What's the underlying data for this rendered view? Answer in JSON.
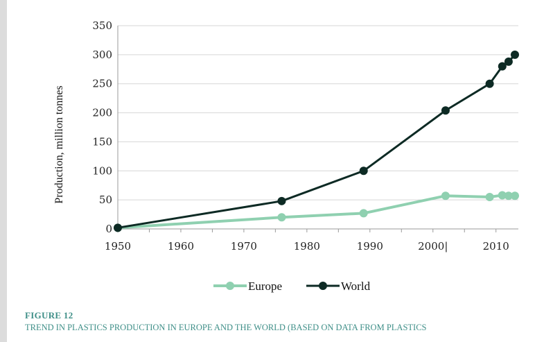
{
  "chart_data": {
    "type": "line",
    "ylabel": "Production, million tonnes",
    "xlabel": "",
    "xlim": [
      1950,
      2013
    ],
    "ylim": [
      0,
      350
    ],
    "x_ticks": [
      "1950",
      "1960",
      "1970",
      "1980",
      "1990",
      "2000|",
      "2010"
    ],
    "y_ticks": [
      "0",
      "50",
      "100",
      "150",
      "200",
      "250",
      "300",
      "350"
    ],
    "grid": "horizontal",
    "legend_position": "bottom-center",
    "series": [
      {
        "name": "Europe",
        "color": "#8fd0b0",
        "x": [
          1950,
          1976,
          1989,
          2002,
          2009,
          2011,
          2012,
          2013
        ],
        "y": [
          2,
          20,
          27,
          57,
          55,
          58,
          57,
          57
        ]
      },
      {
        "name": "World",
        "color": "#0d2a24",
        "x": [
          1950,
          1976,
          1989,
          2002,
          2009,
          2011,
          2012,
          2013
        ],
        "y": [
          2,
          48,
          100,
          204,
          250,
          280,
          288,
          300
        ]
      }
    ]
  },
  "caption": {
    "figure_label": "FIGURE 12",
    "subtitle": "TREND IN PLASTICS PRODUCTION IN EUROPE AND THE WORLD (BASED ON DATA FROM PLASTICS"
  }
}
